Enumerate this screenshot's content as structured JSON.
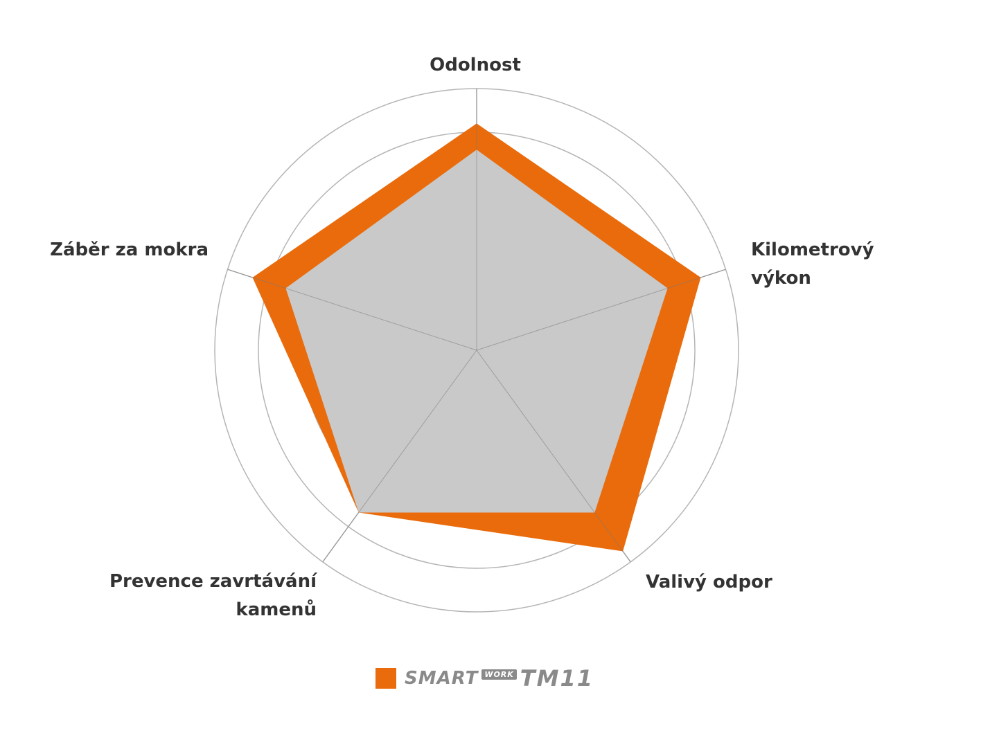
{
  "chart_data": {
    "type": "radar",
    "axes": [
      "Odolnost",
      "Kilometrový výkon",
      "Valivý odpor",
      "Prevence zavrtávání kamenů",
      "Záběr za mokra"
    ],
    "axis_label_lines": [
      [
        "Odolnost"
      ],
      [
        "Kilometrový",
        "výkon"
      ],
      [
        "Valivý odpor"
      ],
      [
        "Prevence zavrtávání",
        "kamenů"
      ],
      [
        "Záběr za mokra"
      ]
    ],
    "range": [
      0,
      6
    ],
    "rings": 6,
    "series": [
      {
        "name": "SmartWork TM11",
        "values": [
          5.2,
          5.4,
          5.7,
          4.6,
          5.4
        ],
        "color": "#e96b0c"
      },
      {
        "values": [
          4.6,
          4.6,
          4.6,
          4.6,
          4.6
        ],
        "color": "#c9c9c9"
      }
    ],
    "grid_color": "#b5b5b5",
    "legend": {
      "position": "bottom"
    }
  },
  "legend": {
    "logo_smart": "SMART",
    "logo_work": "WORK",
    "logo_model": "TM11",
    "swatch_color": "#e96b0c"
  }
}
